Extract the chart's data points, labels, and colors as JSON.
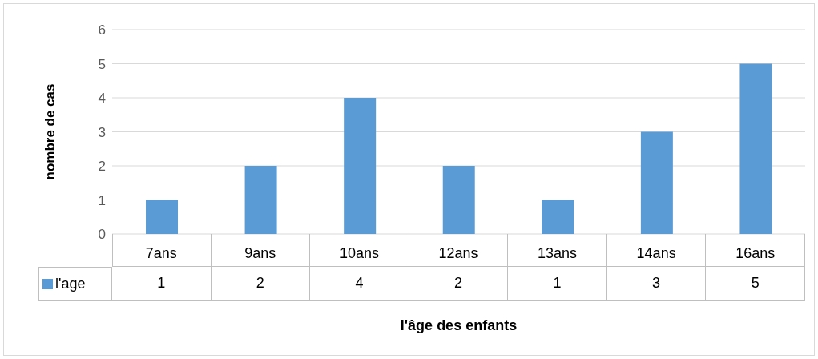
{
  "chart_data": {
    "type": "bar",
    "xlabel": "l'âge des enfants",
    "ylabel": "nombre de cas",
    "categories": [
      "7ans",
      "9ans",
      "10ans",
      "12ans",
      "13ans",
      "14ans",
      "16ans"
    ],
    "series": [
      {
        "name": "l'age",
        "color": "#5b9bd5",
        "values": [
          1,
          2,
          4,
          2,
          1,
          3,
          5
        ]
      }
    ],
    "ylim": [
      0,
      6
    ],
    "yticks": [
      0,
      1,
      2,
      3,
      4,
      5,
      6
    ],
    "grid": "y",
    "legend": "bottom left",
    "data_labels": true
  }
}
